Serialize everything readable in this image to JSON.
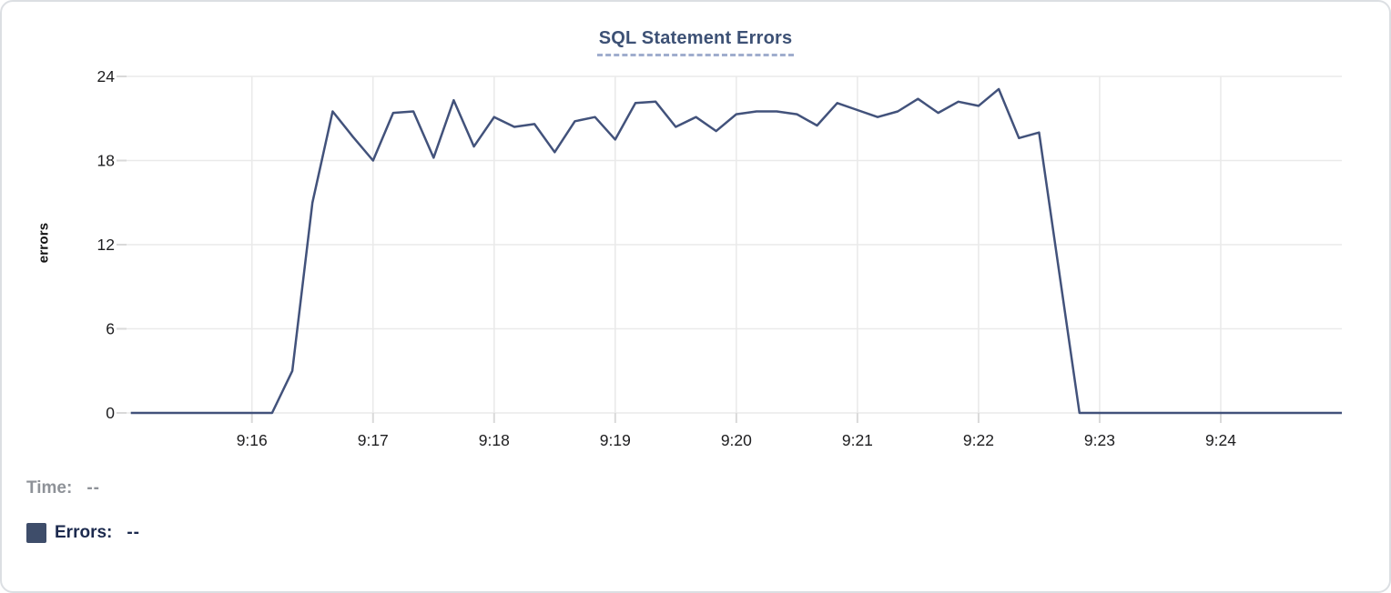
{
  "chart": {
    "title": "SQL Statement Errors",
    "y_axis_label": "errors"
  },
  "legend": {
    "time_label": "Time:",
    "time_value": "--",
    "errors_label": "Errors:",
    "errors_value": "--"
  },
  "colors": {
    "background": "#ffffff",
    "card-border": "#dcdfe3",
    "title": "#3d5175",
    "title-underline": "#9fadcd",
    "grid": "#eaeaea",
    "tick": "#d9d9d9",
    "axis-text": "#1d1d1f",
    "line": "#42527b",
    "legend-swatch": "#3e4d6a",
    "time-label": "#8e9298",
    "errors-label": "#1c2a4e"
  },
  "chart_data": {
    "type": "line",
    "title": "SQL Statement Errors",
    "xlabel": "",
    "ylabel": "errors",
    "ylim": [
      0,
      24
    ],
    "y_ticks": [
      0,
      6,
      12,
      18,
      24
    ],
    "x_tick_labels": [
      "9:16",
      "9:17",
      "9:18",
      "9:19",
      "9:20",
      "9:21",
      "9:22",
      "9:23",
      "9:24"
    ],
    "x_start_time": "9:15:00",
    "x_end_time": "9:25:00",
    "sample_interval_seconds": 10,
    "grid": true,
    "legend_position": "bottom-left",
    "series": [
      {
        "name": "Errors",
        "start_time": "9:15:00",
        "values": [
          0,
          0,
          0,
          0,
          0,
          0,
          0,
          0,
          3,
          15,
          21.5,
          19.7,
          18,
          21.4,
          21.5,
          18.2,
          22.3,
          19,
          21.1,
          20.4,
          20.6,
          18.6,
          20.8,
          21.1,
          19.5,
          22.1,
          22.2,
          20.4,
          21.1,
          20.1,
          21.3,
          21.5,
          21.5,
          21.3,
          20.5,
          22.1,
          21.6,
          21.1,
          21.5,
          22.4,
          21.4,
          22.2,
          21.9,
          23.1,
          19.6,
          20,
          10,
          0,
          0,
          0,
          0,
          0,
          0,
          0,
          0,
          0,
          0,
          0,
          0,
          0,
          0
        ]
      }
    ]
  }
}
